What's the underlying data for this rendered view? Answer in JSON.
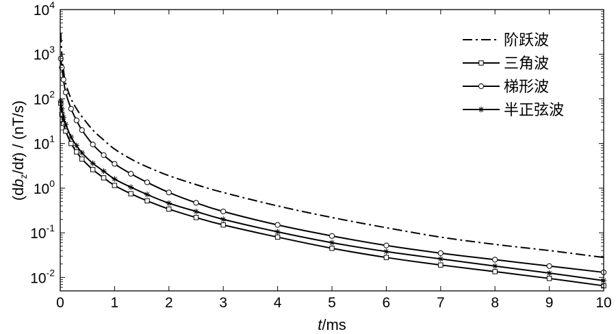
{
  "chart_data": {
    "type": "line",
    "xlabel": "t/ms",
    "ylabel": "(dbz/dt) / (nT/s)",
    "y_scale": "log",
    "xlim": [
      0,
      10
    ],
    "ylim": [
      0.005,
      10000
    ],
    "x_ticks": [
      "0",
      "1",
      "2",
      "3",
      "4",
      "5",
      "6",
      "7",
      "8",
      "9",
      "10"
    ],
    "y_ticks": [
      {
        "value": 10000,
        "base": "10",
        "exp": "4"
      },
      {
        "value": 1000,
        "base": "10",
        "exp": "3"
      },
      {
        "value": 100,
        "base": "10",
        "exp": "2"
      },
      {
        "value": 10,
        "base": "10",
        "exp": "1"
      },
      {
        "value": 1,
        "base": "10",
        "exp": "0"
      },
      {
        "value": 0.1,
        "base": "10",
        "exp": "-1"
      },
      {
        "value": 0.01,
        "base": "10",
        "exp": "-2"
      }
    ],
    "grid": false,
    "legend_position": "top-right",
    "series": [
      {
        "name": "阶跃波",
        "line": "dashdot",
        "marker": "none",
        "x": [
          0.01,
          0.03,
          0.06,
          0.1,
          0.2,
          0.3,
          0.4,
          0.6,
          0.8,
          1.0,
          1.3,
          1.6,
          2.0,
          2.5,
          3.0,
          4.0,
          5.0,
          6.0,
          7.0,
          8.0,
          9.0,
          10.0
        ],
        "y": [
          3000,
          1000,
          450,
          220,
          100,
          60,
          40,
          20,
          12,
          7.5,
          4.5,
          3.0,
          1.9,
          1.2,
          0.8,
          0.4,
          0.22,
          0.13,
          0.08,
          0.055,
          0.04,
          0.028
        ]
      },
      {
        "name": "三角波",
        "line": "solid",
        "marker": "square",
        "x": [
          0.01,
          0.03,
          0.06,
          0.1,
          0.2,
          0.3,
          0.4,
          0.6,
          0.8,
          1.0,
          1.3,
          1.6,
          2.0,
          2.5,
          3.0,
          4.0,
          5.0,
          6.0,
          7.0,
          8.0,
          9.0,
          10.0
        ],
        "y": [
          80,
          45,
          28,
          19,
          10,
          6.5,
          4.5,
          2.6,
          1.7,
          1.15,
          0.75,
          0.52,
          0.34,
          0.22,
          0.15,
          0.08,
          0.045,
          0.028,
          0.019,
          0.0135,
          0.0095,
          0.0065
        ]
      },
      {
        "name": "梯形波",
        "line": "solid",
        "marker": "circle",
        "x": [
          0.01,
          0.03,
          0.06,
          0.1,
          0.2,
          0.3,
          0.4,
          0.6,
          0.8,
          1.0,
          1.3,
          1.6,
          2.0,
          2.5,
          3.0,
          4.0,
          5.0,
          6.0,
          7.0,
          8.0,
          9.0,
          10.0
        ],
        "y": [
          800,
          500,
          270,
          140,
          60,
          33,
          20,
          9.5,
          5.5,
          3.5,
          2.1,
          1.35,
          0.8,
          0.47,
          0.3,
          0.15,
          0.085,
          0.052,
          0.035,
          0.025,
          0.018,
          0.013
        ]
      },
      {
        "name": "半正弦波",
        "line": "solid",
        "marker": "star",
        "x": [
          0.01,
          0.03,
          0.06,
          0.1,
          0.2,
          0.3,
          0.4,
          0.6,
          0.8,
          1.0,
          1.3,
          1.6,
          2.0,
          2.5,
          3.0,
          4.0,
          5.0,
          6.0,
          7.0,
          8.0,
          9.0,
          10.0
        ],
        "y": [
          90,
          60,
          38,
          27,
          14,
          9,
          6.2,
          3.6,
          2.4,
          1.6,
          1.05,
          0.72,
          0.46,
          0.3,
          0.2,
          0.105,
          0.06,
          0.038,
          0.026,
          0.018,
          0.0125,
          0.0085
        ]
      }
    ]
  }
}
